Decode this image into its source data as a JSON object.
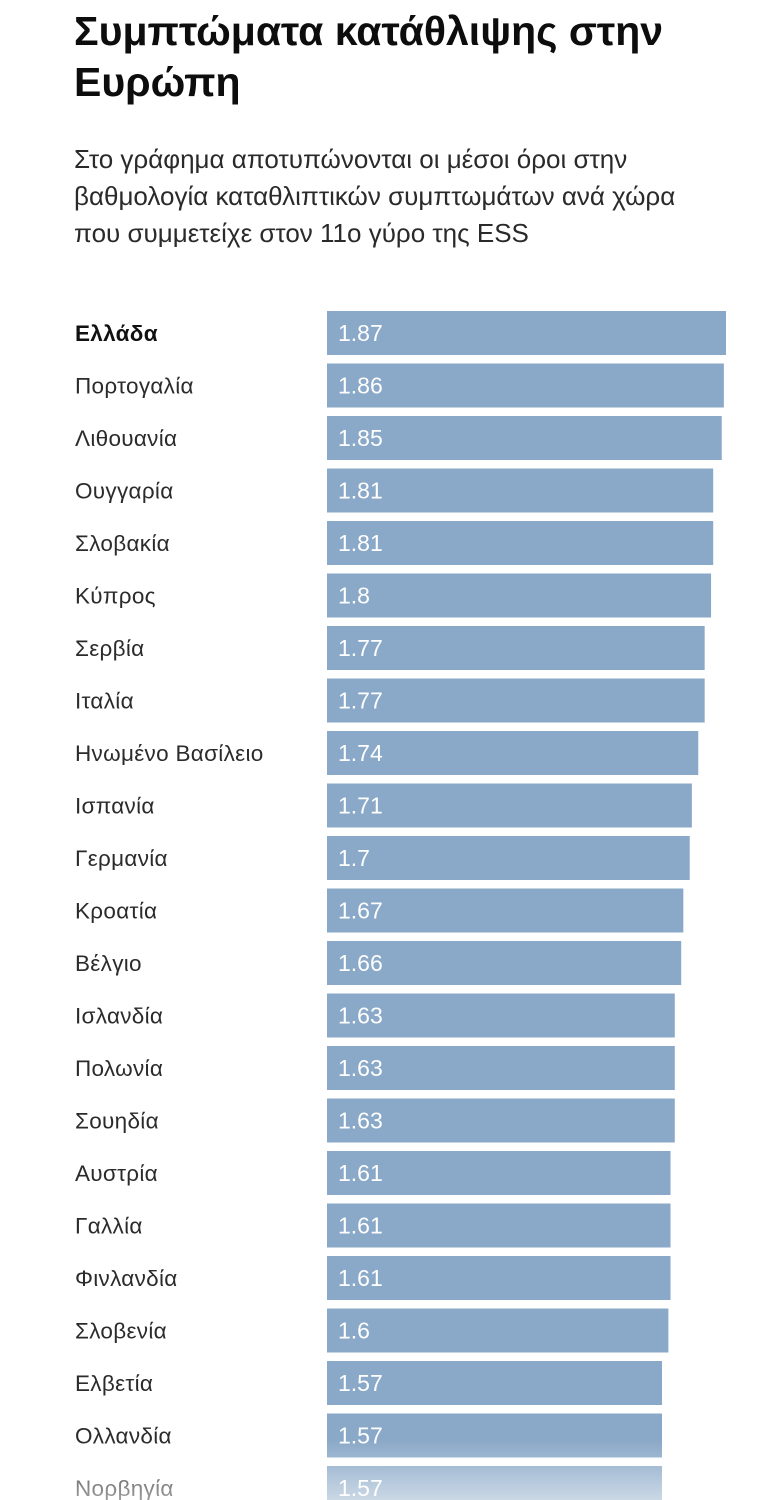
{
  "chart_data": {
    "type": "bar",
    "orientation": "horizontal",
    "title": "Συμπτώματα κατάθλιψης στην Ευρώπη",
    "subtitle": "Στο γράφημα αποτυπώνονται οι μέσοι όροι στην βαθμολογία καταθλιπτικών συμπτωμάτων ανά χώρα που συμμετείχε στον 11ο γύρο της ESS",
    "categories": [
      "Ελλάδα",
      "Πορτογαλία",
      "Λιθουανία",
      "Ουγγαρία",
      "Σλοβακία",
      "Κύπρος",
      "Σερβία",
      "Ιταλία",
      "Ηνωμένο Βασίλειο",
      "Ισπανία",
      "Γερμανία",
      "Κροατία",
      "Βέλγιο",
      "Ισλανδία",
      "Πολωνία",
      "Σουηδία",
      "Αυστρία",
      "Γαλλία",
      "Φινλανδία",
      "Σλοβενία",
      "Ελβετία",
      "Ολλανδία",
      "Νορβηγία"
    ],
    "values": [
      1.87,
      1.86,
      1.85,
      1.81,
      1.81,
      1.8,
      1.77,
      1.77,
      1.74,
      1.71,
      1.7,
      1.67,
      1.66,
      1.63,
      1.63,
      1.63,
      1.61,
      1.61,
      1.61,
      1.6,
      1.57,
      1.57,
      1.57
    ],
    "value_labels": [
      "1.87",
      "1.86",
      "1.85",
      "1.81",
      "1.81",
      "1.8",
      "1.77",
      "1.77",
      "1.74",
      "1.71",
      "1.7",
      "1.67",
      "1.66",
      "1.63",
      "1.63",
      "1.63",
      "1.61",
      "1.61",
      "1.61",
      "1.6",
      "1.57",
      "1.57",
      "1.57"
    ],
    "highlighted_category": "Ελλάδα",
    "xlim": [
      0,
      1.87
    ],
    "grid": false,
    "legend": "none",
    "colors": {
      "bar": "#8aa8c7",
      "value_label": "#ffffff",
      "text": "#2b2b2b"
    }
  }
}
